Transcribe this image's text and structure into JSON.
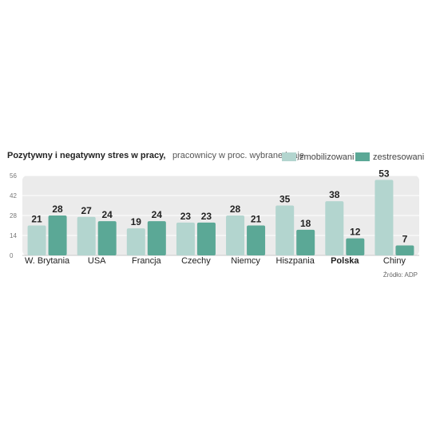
{
  "chart_data": {
    "type": "bar",
    "title": "Pozytywny i negatywny stres w pracy,",
    "subtitle": "pracownicy w proc. wybrane kraje",
    "categories": [
      "W. Brytania",
      "USA",
      "Francja",
      "Czechy",
      "Niemcy",
      "Hiszpania",
      "Polska",
      "Chiny"
    ],
    "highlight_category": "Polska",
    "series": [
      {
        "name": "zmobilizowani",
        "color": "#b3d5cf",
        "values": [
          21,
          27,
          19,
          23,
          28,
          35,
          38,
          53
        ]
      },
      {
        "name": "zestresowani",
        "color": "#5ba896",
        "values": [
          28,
          24,
          24,
          23,
          21,
          18,
          12,
          7
        ]
      }
    ],
    "yticks": [
      0,
      14,
      28,
      42,
      56
    ],
    "ylim": [
      0,
      56
    ],
    "legend_position": "top-right",
    "source": "Źródło: ADP",
    "plot_background": "#ebebeb"
  }
}
